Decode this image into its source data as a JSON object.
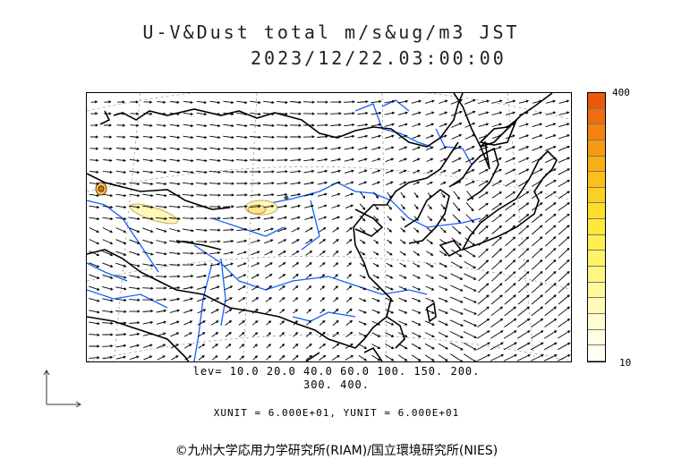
{
  "header": {
    "title": "U-V&Dust total m/s&ug/m3 JST",
    "datetime": "2023/12/22.03:00:00"
  },
  "colorbar": {
    "max_label": "400",
    "min_label": "10",
    "colors": [
      "#e85a0a",
      "#f06c0c",
      "#f5820e",
      "#f79a10",
      "#f9ae14",
      "#fbc01a",
      "#fcd022",
      "#fdde2c",
      "#fee93a",
      "#fff04e",
      "#fff468",
      "#fff784",
      "#fff99e",
      "#fffbb8",
      "#fffcd0",
      "#fffde4",
      "#fffef2"
    ]
  },
  "legend": {
    "lev_line1": "lev= 10.0 20.0 40.0 60.0 100. 150. 200.",
    "lev_line2": "300. 400.",
    "units": "XUNIT = 6.000E+01, YUNIT = 6.000E+01"
  },
  "footer": {
    "copyright": "©九州大学応用力学研究所(RIAM)/国立環境研究所(NIES)"
  },
  "map": {
    "coast_color": "#000000",
    "river_color": "#1560ff",
    "dust_fill": "#fff8b8",
    "dust_edge": "#c8a860"
  }
}
